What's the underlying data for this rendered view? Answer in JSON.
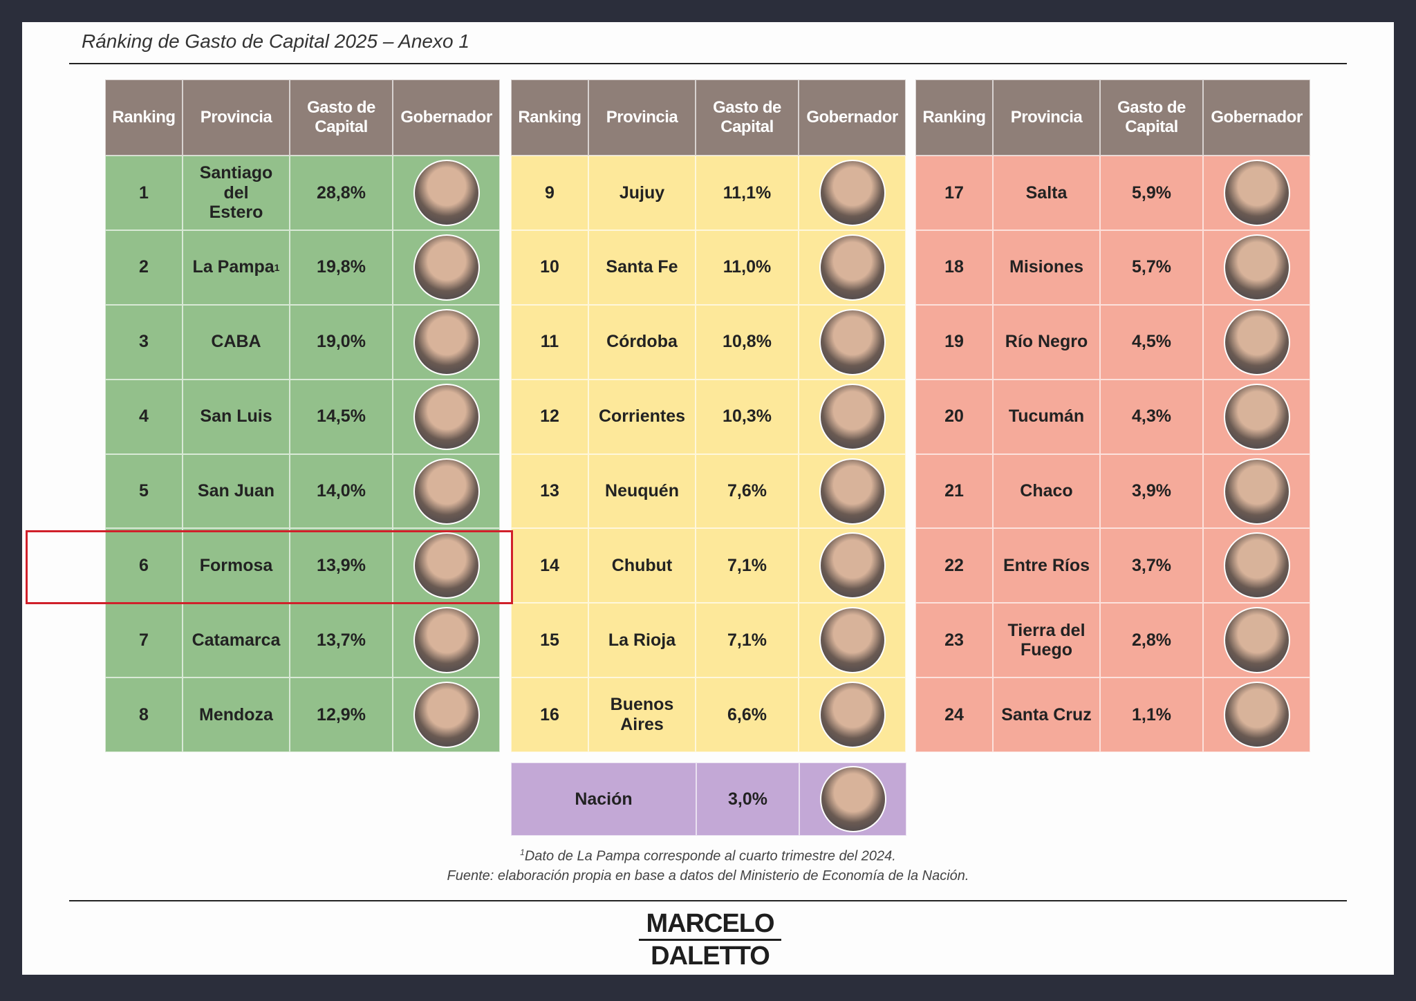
{
  "title": "Ránking de Gasto de Capital 2025 – Anexo 1",
  "headers": [
    "Ranking",
    "Provincia",
    "Gasto de Capital",
    "Gobernador"
  ],
  "tables": [
    {
      "rows": [
        {
          "rank": 1,
          "province": "Santiago del Estero",
          "value": "28,8%"
        },
        {
          "rank": 2,
          "province": "La Pampa",
          "note": "1",
          "value": "19,8%"
        },
        {
          "rank": 3,
          "province": "CABA",
          "value": "19,0%"
        },
        {
          "rank": 4,
          "province": "San Luis",
          "value": "14,5%"
        },
        {
          "rank": 5,
          "province": "San Juan",
          "value": "14,0%"
        },
        {
          "rank": 6,
          "province": "Formosa",
          "value": "13,9%"
        },
        {
          "rank": 7,
          "province": "Catamarca",
          "value": "13,7%"
        },
        {
          "rank": 8,
          "province": "Mendoza",
          "value": "12,9%"
        }
      ]
    },
    {
      "rows": [
        {
          "rank": 9,
          "province": "Jujuy",
          "value": "11,1%"
        },
        {
          "rank": 10,
          "province": "Santa Fe",
          "value": "11,0%"
        },
        {
          "rank": 11,
          "province": "Córdoba",
          "value": "10,8%"
        },
        {
          "rank": 12,
          "province": "Corrientes",
          "value": "10,3%"
        },
        {
          "rank": 13,
          "province": "Neuquén",
          "value": "7,6%"
        },
        {
          "rank": 14,
          "province": "Chubut",
          "value": "7,1%"
        },
        {
          "rank": 15,
          "province": "La Rioja",
          "value": "7,1%"
        },
        {
          "rank": 16,
          "province": "Buenos Aires",
          "value": "6,6%"
        }
      ]
    },
    {
      "rows": [
        {
          "rank": 17,
          "province": "Salta",
          "value": "5,9%"
        },
        {
          "rank": 18,
          "province": "Misiones",
          "value": "5,7%"
        },
        {
          "rank": 19,
          "province": "Río Negro",
          "value": "4,5%"
        },
        {
          "rank": 20,
          "province": "Tucumán",
          "value": "4,3%"
        },
        {
          "rank": 21,
          "province": "Chaco",
          "value": "3,9%"
        },
        {
          "rank": 22,
          "province": "Entre Ríos",
          "value": "3,7%"
        },
        {
          "rank": 23,
          "province": "Tierra del Fuego",
          "value": "2,8%"
        },
        {
          "rank": 24,
          "province": "Santa Cruz",
          "value": "1,1%"
        }
      ]
    }
  ],
  "nacion": {
    "name": "Nación",
    "value": "3,0%"
  },
  "footnote_mark": "1",
  "footnote": "Dato de La Pampa corresponde al cuarto trimestre del 2024.",
  "source": "Fuente: elaboración propia en base a datos del Ministerio de Economía de la Nación.",
  "logo": [
    "MARCELO",
    "DALETTO"
  ]
}
